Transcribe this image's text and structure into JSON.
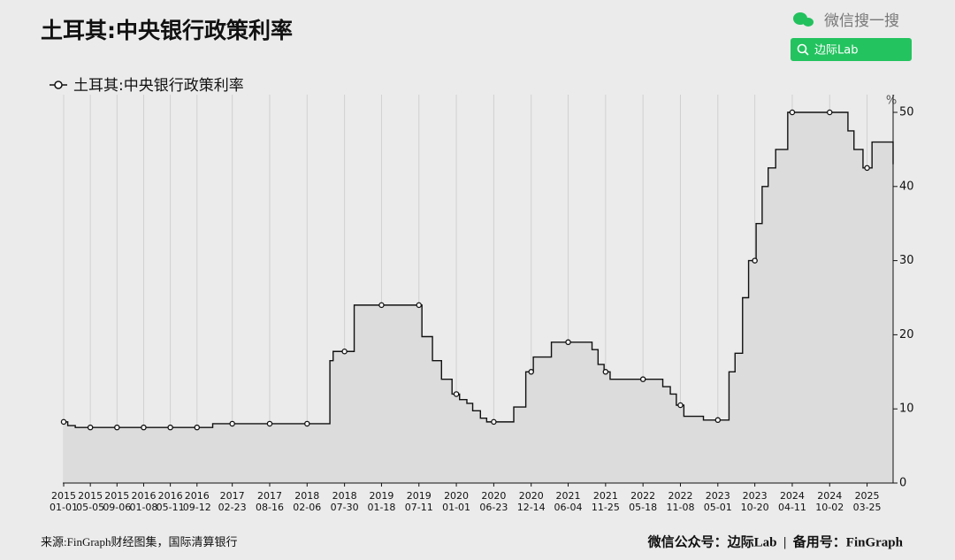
{
  "chart_data": {
    "type": "step",
    "title": "土耳其:中央银行政策利率",
    "y_unit": "%",
    "series": [
      {
        "name": "土耳其:中央银行政策利率",
        "color": "#111111",
        "x": [
          "2015-01-01",
          "2015-01-20",
          "2015-02-24",
          "2015-05-05",
          "2015-09-06",
          "2016-01-08",
          "2016-05-11",
          "2016-09-12",
          "2016-11-24",
          "2017-02-23",
          "2017-08-16",
          "2018-02-06",
          "2018-05-23",
          "2018-06-07",
          "2018-07-30",
          "2018-09-13",
          "2019-01-18",
          "2019-07-11",
          "2019-07-25",
          "2019-09-12",
          "2019-10-24",
          "2019-12-12",
          "2020-01-01",
          "2020-01-16",
          "2020-02-19",
          "2020-03-17",
          "2020-04-22",
          "2020-05-21",
          "2020-06-23",
          "2020-09-24",
          "2020-11-19",
          "2020-12-14",
          "2020-12-24",
          "2021-03-18",
          "2021-06-04",
          "2021-09-23",
          "2021-10-21",
          "2021-11-18",
          "2021-11-25",
          "2021-12-16",
          "2022-05-18",
          "2022-08-18",
          "2022-09-22",
          "2022-10-20",
          "2022-11-08",
          "2022-11-24",
          "2023-02-23",
          "2023-05-01",
          "2023-06-22",
          "2023-07-20",
          "2023-08-24",
          "2023-09-21",
          "2023-10-20",
          "2023-10-26",
          "2023-11-23",
          "2023-12-21",
          "2024-01-25",
          "2024-03-21",
          "2024-04-11",
          "2024-10-02",
          "2024-12-26",
          "2025-01-23",
          "2025-03-06",
          "2025-03-25",
          "2025-04-17",
          "2025-07-24"
        ],
        "values": [
          8.25,
          7.75,
          7.5,
          7.5,
          7.5,
          7.5,
          7.5,
          7.5,
          8,
          8,
          8,
          8,
          16.5,
          17.75,
          17.75,
          24,
          24,
          24,
          19.75,
          16.5,
          14,
          12,
          12,
          11.25,
          10.75,
          9.75,
          8.75,
          8.25,
          8.25,
          10.25,
          15,
          15,
          17,
          19,
          19,
          18,
          16,
          15,
          15,
          14,
          14,
          13,
          12,
          10.5,
          10.5,
          9,
          8.5,
          8.5,
          15,
          17.5,
          25,
          30,
          30,
          35,
          40,
          42.5,
          45,
          50,
          50,
          50,
          47.5,
          45,
          42.5,
          42.5,
          46,
          43
        ]
      }
    ],
    "xlim": [
      "2015-01-01",
      "2025-07-24"
    ],
    "xticks": [
      "2015-01-01",
      "2015-05-05",
      "2015-09-06",
      "2016-01-08",
      "2016-05-11",
      "2016-09-12",
      "2017-02-23",
      "2017-08-16",
      "2018-02-06",
      "2018-07-30",
      "2019-01-18",
      "2019-07-11",
      "2020-01-01",
      "2020-06-23",
      "2020-12-14",
      "2021-06-04",
      "2021-11-25",
      "2022-05-18",
      "2022-11-08",
      "2023-05-01",
      "2023-10-20",
      "2024-04-11",
      "2024-10-02",
      "2025-03-25"
    ],
    "ylim": [
      0,
      50
    ],
    "yticks": [
      0,
      10,
      20,
      30,
      40,
      50
    ],
    "grid": true,
    "area_color": "#dcdcdc"
  },
  "branding": {
    "watermark": "微信搜一搜",
    "search": "边际Lab"
  },
  "footer": {
    "source": "来源:FinGraph财经图集，国际清算银行",
    "right": "微信公众号：边际Lab  |  备用号：FinGraph"
  }
}
